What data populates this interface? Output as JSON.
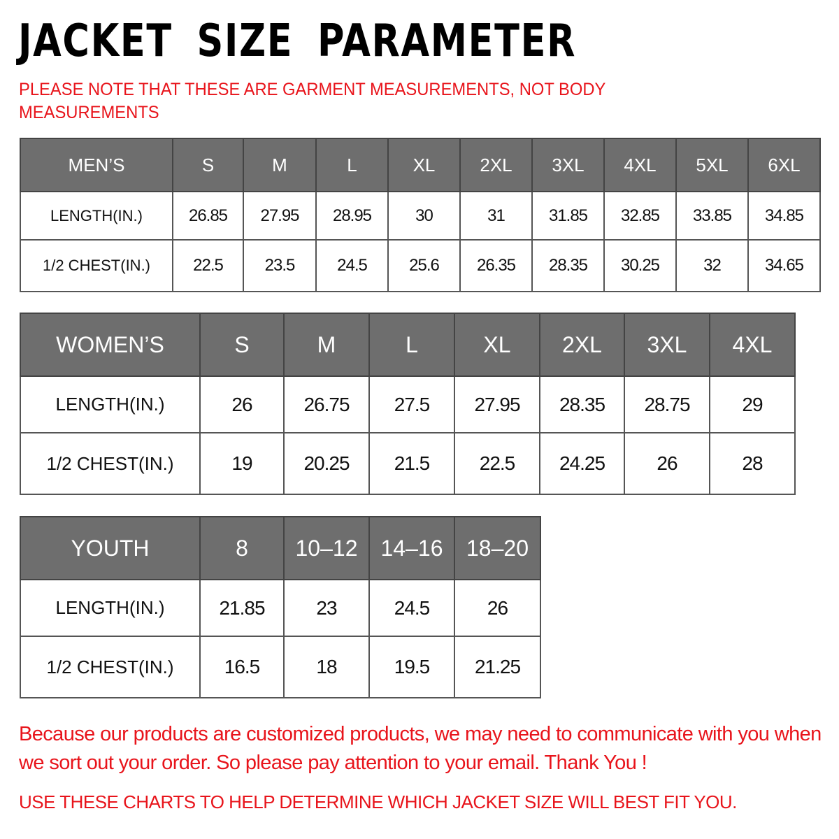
{
  "title": "JACKET  SIZE  PARAMETER",
  "note": "PLEASE NOTE THAT THESE ARE GARMENT MEASUREMENTS, NOT BODY MEASUREMENTS",
  "colors": {
    "header_bg": "#6e6e6e",
    "note_red": "#e8141b"
  },
  "tables": {
    "men": {
      "label": "MEN’S",
      "sizes": [
        "S",
        "M",
        "L",
        "XL",
        "2XL",
        "3XL",
        "4XL",
        "5XL",
        "6XL"
      ],
      "rows": [
        {
          "label": "LENGTH(IN.)",
          "values": [
            "26.85",
            "27.95",
            "28.95",
            "30",
            "31",
            "31.85",
            "32.85",
            "33.85",
            "34.85"
          ]
        },
        {
          "label": "1/2 CHEST(IN.)",
          "values": [
            "22.5",
            "23.5",
            "24.5",
            "25.6",
            "26.35",
            "28.35",
            "30.25",
            "32",
            "34.65"
          ]
        }
      ]
    },
    "women": {
      "label": "WOMEN’S",
      "sizes": [
        "S",
        "M",
        "L",
        "XL",
        "2XL",
        "3XL",
        "4XL"
      ],
      "rows": [
        {
          "label": "LENGTH(IN.)",
          "values": [
            "26",
            "26.75",
            "27.5",
            "27.95",
            "28.35",
            "28.75",
            "29"
          ]
        },
        {
          "label": "1/2 CHEST(IN.)",
          "values": [
            "19",
            "20.25",
            "21.5",
            "22.5",
            "24.25",
            "26",
            "28"
          ]
        }
      ]
    },
    "youth": {
      "label": "YOUTH",
      "sizes": [
        "8",
        "10–12",
        "14–16",
        "18–20"
      ],
      "rows": [
        {
          "label": "LENGTH(IN.)",
          "values": [
            "21.85",
            "23",
            "24.5",
            "26"
          ]
        },
        {
          "label": "1/2 CHEST(IN.)",
          "values": [
            "16.5",
            "18",
            "19.5",
            "21.25"
          ]
        }
      ]
    }
  },
  "footer": {
    "message": "Because our products are customized products, we may need to communicate with you when we sort out your order. So please pay attention to your email. Thank You !",
    "instruction": "USE THESE CHARTS TO HELP DETERMINE WHICH JACKET SIZE WILL BEST FIT YOU."
  }
}
